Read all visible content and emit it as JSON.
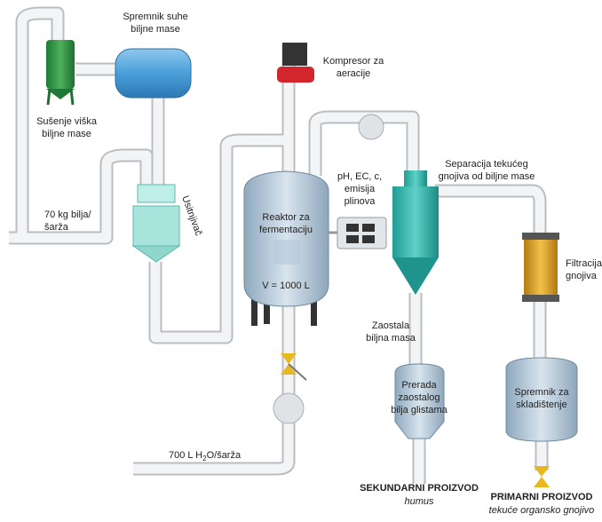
{
  "labels": {
    "dry_tank": [
      "Spremnik suhe",
      "biljne mase"
    ],
    "dryer": [
      "Sušenje viška",
      "biljne mase"
    ],
    "compressor": [
      "Kompresor za",
      "aeracije"
    ],
    "input": [
      "70 kg bilja/",
      "šarža"
    ],
    "shredder": "Usitnjivač",
    "reactor": [
      "Reaktor za",
      "fermentaciju"
    ],
    "volume": "V = 1000 L",
    "sensors": [
      "pH, EC, c,",
      "emisija",
      "plinova"
    ],
    "separation": [
      "Separacija tekućeg",
      "gnojiva od biljne mase"
    ],
    "filtration": [
      "Filtracija",
      "gnojiva"
    ],
    "residue": [
      "Zaostala",
      "biljna masa"
    ],
    "worms": [
      "Prerada",
      "zaostalog",
      "bilja glistama"
    ],
    "storage": [
      "Spremnik za",
      "skladištenje"
    ],
    "water": [
      "700 L H",
      "2",
      "O/šarža"
    ],
    "secondary": {
      "title": "SEKUNDARNI PROIZVOD",
      "subtitle": "humus"
    },
    "primary": {
      "title": "PRIMARNI PROIZVOD",
      "subtitle": "tekuće organsko gnojivo"
    }
  }
}
